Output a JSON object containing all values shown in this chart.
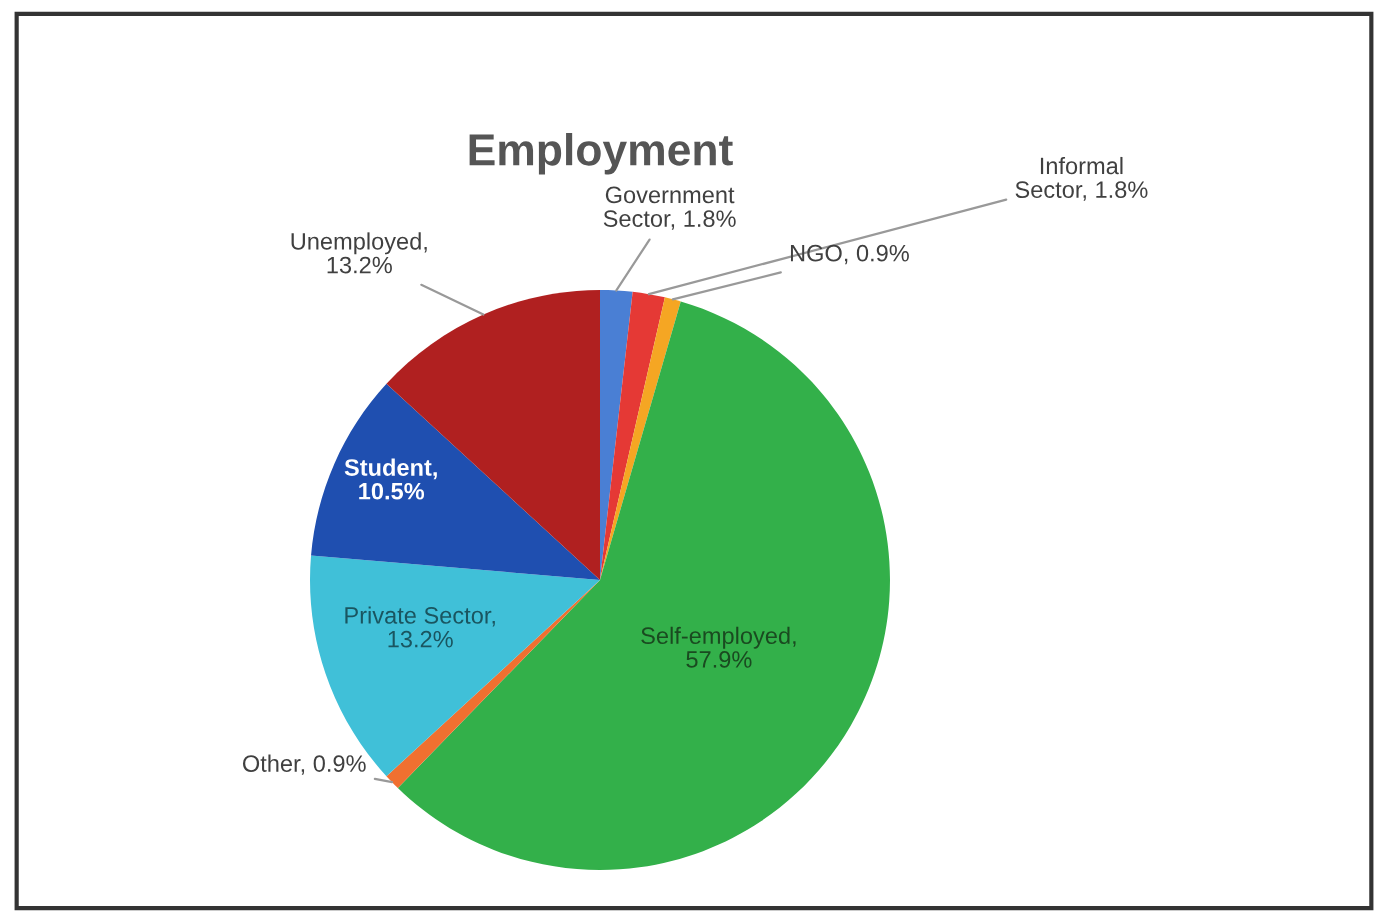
{
  "chart_data": {
    "type": "pie",
    "title": "Employment",
    "categories": [
      "Government Sector",
      "Informal Sector",
      "NGO",
      "Self-employed",
      "Other",
      "Private Sector",
      "Student",
      "Unemployed"
    ],
    "values": [
      1.8,
      1.8,
      0.9,
      57.9,
      0.9,
      13.2,
      10.5,
      13.2
    ],
    "colors": [
      "#4a7fd4",
      "#e53935",
      "#f5a623",
      "#33b04a",
      "#f07030",
      "#40c0d8",
      "#1f4fb0",
      "#b02020"
    ],
    "value_labels": [
      ", 1.8%",
      ", 1.8%",
      ", 0.9%",
      ", 57.9%",
      ", 0.9%",
      ", 13.2%",
      ", 10.5%",
      ", 13.2%"
    ],
    "legend": false
  }
}
